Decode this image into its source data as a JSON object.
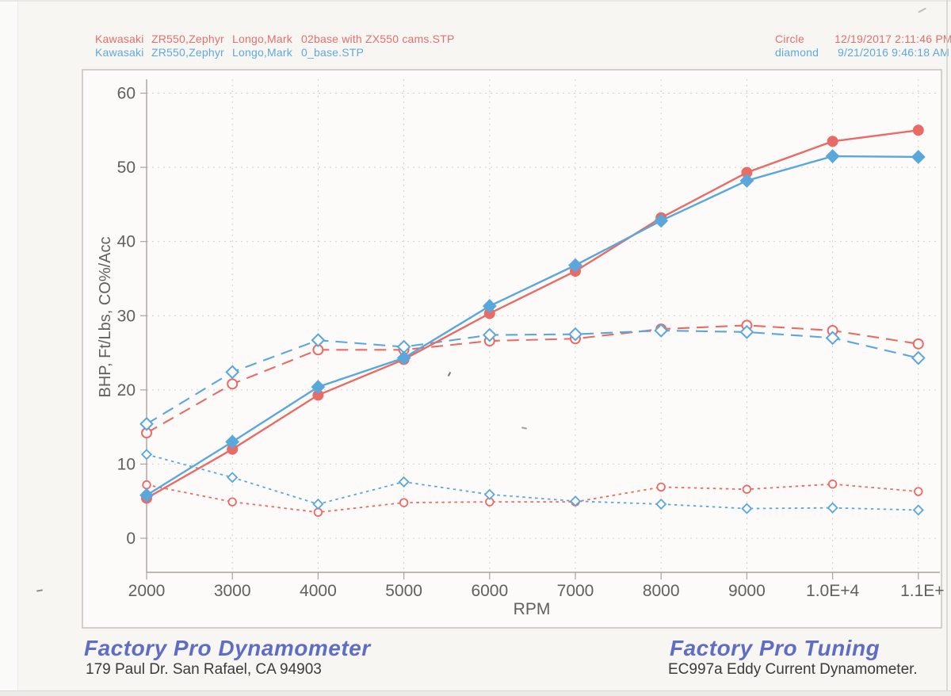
{
  "header": {
    "runs": [
      {
        "make": "Kawasaki",
        "model": "ZR550,Zephyr",
        "operator": "Longo,Mark",
        "file": "02base with ZX550 cams.STP",
        "marker": "Circle",
        "datetime": "12/19/2017 2:11:46 PM",
        "color": "#e4706b"
      },
      {
        "make": "Kawasaki",
        "model": "ZR550,Zephyr",
        "operator": "Longo,Mark",
        "file": "0_base.STP",
        "marker": "diamond",
        "datetime": "9/21/2016 9:46:18 AM",
        "color": "#5fa9dc"
      }
    ]
  },
  "chart_data": {
    "type": "line",
    "x": [
      2000,
      3000,
      4000,
      5000,
      6000,
      7000,
      8000,
      9000,
      10000,
      11000
    ],
    "x_tick_labels": [
      "2000",
      "3000",
      "4000",
      "5000",
      "6000",
      "7000",
      "8000",
      "9000",
      "1.0E+4",
      "1.1E+"
    ],
    "y_ticks": [
      0,
      10,
      20,
      30,
      40,
      50,
      60
    ],
    "xlabel": "RPM",
    "ylabel": "BHP, Ft/Lbs, CO%/Acc",
    "ylim": [
      0,
      60
    ],
    "grid": true,
    "legend_position": "header-rows",
    "series": [
      {
        "name": "02base with ZX550 cams.STP - BHP (Circle run)",
        "color": "#e96b66",
        "style": "solid",
        "marker": "circle-filled",
        "values": [
          5.4,
          12.0,
          19.3,
          24.1,
          30.3,
          36.0,
          43.2,
          49.3,
          53.5,
          55.0
        ]
      },
      {
        "name": "0_base.STP - BHP (diamond run)",
        "color": "#5aa7dc",
        "style": "solid",
        "marker": "diamond-filled",
        "values": [
          5.8,
          13.0,
          20.4,
          24.3,
          31.3,
          36.8,
          42.8,
          48.2,
          51.5,
          51.4
        ]
      },
      {
        "name": "02base with ZX550 cams.STP - Ft/Lbs (Circle run)",
        "color": "#e96b66",
        "style": "dashed",
        "marker": "circle-open",
        "values": [
          14.2,
          20.8,
          25.4,
          25.4,
          26.6,
          26.9,
          28.2,
          28.7,
          28.0,
          26.2
        ]
      },
      {
        "name": "0_base.STP - Ft/Lbs (diamond run)",
        "color": "#5aa7dc",
        "style": "dashed",
        "marker": "diamond-open",
        "values": [
          15.4,
          22.4,
          26.7,
          25.8,
          27.4,
          27.5,
          28.0,
          27.8,
          27.0,
          24.3
        ]
      },
      {
        "name": "02base with ZX550 cams.STP - CO% (Circle run)",
        "color": "#e96b66",
        "style": "dotted",
        "marker": "circle-open",
        "values": [
          7.2,
          4.9,
          3.5,
          4.8,
          4.9,
          4.9,
          6.9,
          6.6,
          7.3,
          6.3
        ]
      },
      {
        "name": "0_base.STP - CO% (diamond run)",
        "color": "#5aa7dc",
        "style": "dotted",
        "marker": "diamond-open",
        "values": [
          11.3,
          8.2,
          4.6,
          7.6,
          5.9,
          5.0,
          4.6,
          4.0,
          4.1,
          3.8
        ]
      }
    ]
  },
  "footer": {
    "left_title": "Factory Pro Dynamometer",
    "left_subtitle": "179 Paul Dr.  San Rafael, CA 94903",
    "right_title": "Factory Pro Tuning",
    "right_subtitle": "EC997a  Eddy Current Dynamometer."
  },
  "colors": {
    "red_series": "#e96b66",
    "blue_series": "#5aa7dc",
    "brand_text": "#5f6ec3",
    "axis_text": "#606060",
    "grid_line": "#d2d0cc",
    "axis_line": "#a8a49e",
    "plot_border": "#b9b5af",
    "plot_fill": "#fcfbf9",
    "paper": "#f7f6f3"
  }
}
